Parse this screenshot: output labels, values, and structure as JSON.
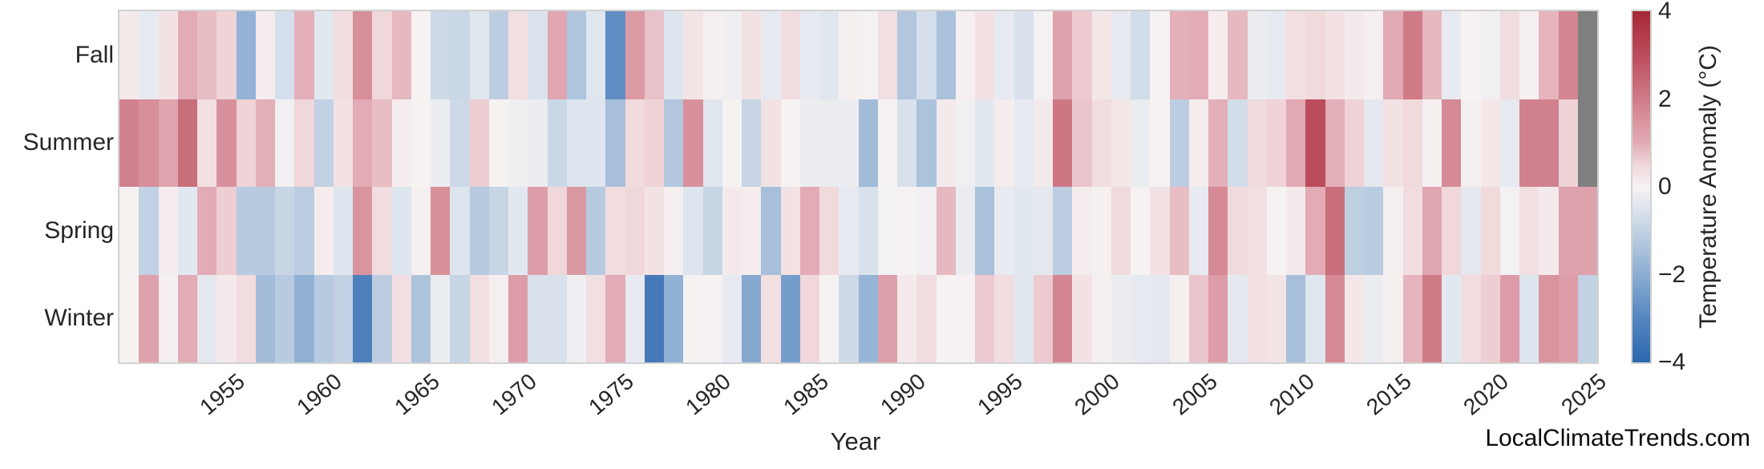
{
  "page": {
    "background": "#ffffff"
  },
  "footer": {
    "watermark": "LocalClimateTrends.com"
  },
  "chart_data": {
    "type": "heatmap",
    "title": "",
    "xlabel": "Year",
    "colorbar_label": "Temperature Anomaly (°C)",
    "rows": [
      "Fall",
      "Summer",
      "Spring",
      "Winter"
    ],
    "x": [
      1950,
      1951,
      1952,
      1953,
      1954,
      1955,
      1956,
      1957,
      1958,
      1959,
      1960,
      1961,
      1962,
      1963,
      1964,
      1965,
      1966,
      1967,
      1968,
      1969,
      1970,
      1971,
      1972,
      1973,
      1974,
      1975,
      1976,
      1977,
      1978,
      1979,
      1980,
      1981,
      1982,
      1983,
      1984,
      1985,
      1986,
      1987,
      1988,
      1989,
      1990,
      1991,
      1992,
      1993,
      1994,
      1995,
      1996,
      1997,
      1998,
      1999,
      2000,
      2001,
      2002,
      2003,
      2004,
      2005,
      2006,
      2007,
      2008,
      2009,
      2010,
      2011,
      2012,
      2013,
      2014,
      2015,
      2016,
      2017,
      2018,
      2019,
      2020,
      2021,
      2022,
      2023,
      2024,
      2025
    ],
    "x_ticks": [
      1955,
      1960,
      1965,
      1970,
      1975,
      1980,
      1985,
      1990,
      1995,
      2000,
      2005,
      2010,
      2015,
      2020,
      2025
    ],
    "series": [
      {
        "name": "Fall",
        "values": [
          0.15,
          -0.3,
          0.3,
          1.0,
          0.8,
          0.55,
          -1.85,
          0.1,
          -0.65,
          0.95,
          -0.4,
          0.4,
          1.6,
          0.5,
          0.85,
          0.0,
          -0.8,
          -0.85,
          -0.45,
          -1.1,
          0.35,
          -0.55,
          1.1,
          -1.35,
          -0.45,
          -2.8,
          1.35,
          0.75,
          -0.5,
          0.25,
          0.05,
          -0.15,
          0.3,
          -0.3,
          0.4,
          -0.3,
          -0.45,
          0.05,
          -0.05,
          0.35,
          -1.3,
          -0.65,
          -1.45,
          0.05,
          0.3,
          -0.3,
          -0.6,
          -0.05,
          1.2,
          0.65,
          0.2,
          -0.3,
          -0.7,
          0.0,
          0.95,
          1.0,
          0.1,
          0.85,
          -0.25,
          -0.3,
          0.35,
          0.45,
          0.3,
          0.15,
          0.05,
          1.05,
          2.0,
          0.85,
          -0.3,
          0.0,
          -0.1,
          0.4,
          0.05,
          0.9,
          1.8,
          null
        ]
      },
      {
        "name": "Summer",
        "values": [
          1.9,
          1.6,
          1.15,
          2.3,
          0.35,
          1.55,
          0.55,
          0.95,
          -0.1,
          0.5,
          -1.0,
          0.3,
          1.0,
          0.8,
          0.1,
          0.0,
          -0.2,
          -0.8,
          0.6,
          0.0,
          -0.15,
          -0.2,
          -0.85,
          -0.5,
          -0.5,
          -1.5,
          0.45,
          0.55,
          -1.3,
          1.55,
          -0.45,
          0.0,
          -0.9,
          0.3,
          0.0,
          -0.2,
          -0.25,
          -0.2,
          -1.6,
          0.0,
          -0.6,
          -1.4,
          0.15,
          -0.1,
          -0.4,
          0.1,
          -0.3,
          0.15,
          2.1,
          0.7,
          0.4,
          0.2,
          -0.25,
          0.0,
          -1.1,
          0.1,
          0.95,
          -0.7,
          0.45,
          0.55,
          1.05,
          3.0,
          0.95,
          0.55,
          -0.35,
          0.3,
          0.45,
          0.05,
          1.7,
          0.05,
          0.2,
          -0.3,
          1.9,
          1.9,
          0.55,
          null
        ]
      },
      {
        "name": "Spring",
        "values": [
          0.0,
          -1.0,
          0.1,
          -0.4,
          1.0,
          0.6,
          -1.2,
          -1.2,
          -0.9,
          -1.1,
          0.1,
          -0.5,
          1.5,
          0.4,
          -0.5,
          0.05,
          1.6,
          -0.5,
          -1.2,
          -0.9,
          -0.4,
          1.3,
          0.5,
          1.4,
          -1.2,
          0.4,
          0.5,
          0.3,
          0.05,
          -0.5,
          -0.9,
          0.15,
          0.1,
          -1.5,
          0.3,
          1.0,
          0.45,
          -0.3,
          -0.6,
          -0.05,
          0.0,
          -0.1,
          0.85,
          -0.25,
          -1.45,
          -0.3,
          -0.4,
          -0.35,
          -1.1,
          0.1,
          0.05,
          0.45,
          0.0,
          0.3,
          0.8,
          -0.3,
          1.7,
          0.45,
          0.35,
          0.0,
          0.15,
          1.0,
          2.3,
          -1.05,
          -1.15,
          0.05,
          0.4,
          1.1,
          0.5,
          -0.35,
          0.45,
          -0.05,
          0.35,
          0.15,
          1.2,
          1.2
        ]
      },
      {
        "name": "Winter",
        "values": [
          0.0,
          1.2,
          0.05,
          1.0,
          -0.35,
          0.15,
          0.4,
          -1.6,
          -1.2,
          -1.9,
          -1.2,
          -1.0,
          -3.2,
          -1.1,
          0.35,
          -1.4,
          -0.25,
          -0.9,
          0.35,
          0.05,
          1.3,
          -0.6,
          -0.6,
          -0.15,
          0.35,
          1.0,
          -0.3,
          -3.4,
          -1.9,
          0.0,
          0.0,
          -0.3,
          -2.1,
          0.35,
          -2.4,
          0.5,
          0.0,
          -0.8,
          -1.8,
          1.25,
          0.15,
          0.4,
          0.0,
          0.0,
          0.65,
          0.4,
          -0.4,
          0.65,
          1.8,
          0.3,
          0.05,
          -0.2,
          -0.3,
          -0.35,
          0.05,
          0.7,
          1.3,
          -0.35,
          0.35,
          0.25,
          -1.5,
          -0.45,
          1.7,
          0.2,
          -0.25,
          0.05,
          0.9,
          2.0,
          -0.4,
          0.4,
          0.6,
          1.3,
          -0.5,
          1.5,
          1.3,
          -1.0
        ]
      }
    ],
    "value_range": [
      -4,
      4
    ],
    "colorbar_ticks": [
      {
        "value": 4,
        "label": "4"
      },
      {
        "value": 2,
        "label": "2"
      },
      {
        "value": 0,
        "label": "0"
      },
      {
        "value": -2,
        "label": "−2"
      },
      {
        "value": -4,
        "label": "−4"
      }
    ],
    "missing_color": "#7f7f7f",
    "colormap_stops": [
      [
        -4,
        "#2c68ae"
      ],
      [
        -3,
        "#5585c0"
      ],
      [
        -2,
        "#8badd2"
      ],
      [
        -1,
        "#c2d1e3"
      ],
      [
        -0.5,
        "#dde5ee"
      ],
      [
        0,
        "#f6f2f2"
      ],
      [
        0.5,
        "#f0d7da"
      ],
      [
        1,
        "#e2abb5"
      ],
      [
        2,
        "#cf7c88"
      ],
      [
        3,
        "#bb4c5c"
      ],
      [
        4,
        "#a52834"
      ]
    ],
    "legend_position": "right",
    "grid": false
  }
}
